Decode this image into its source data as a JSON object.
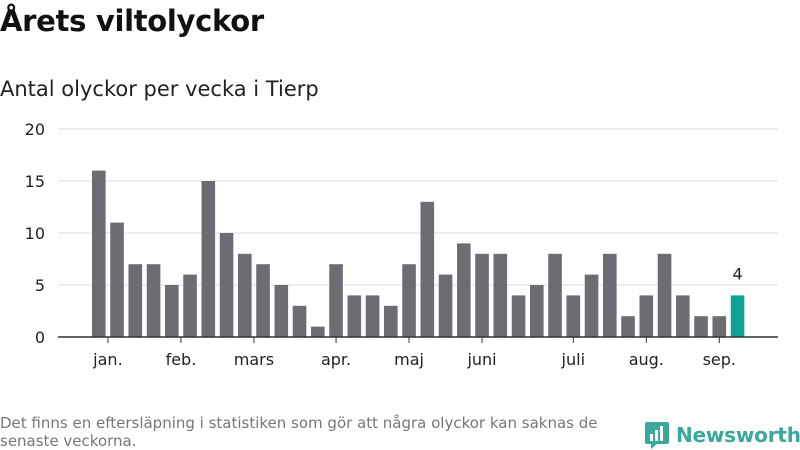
{
  "header": {
    "title": "Årets viltolyckor",
    "subtitle": "Antal olyckor per vecka i Tierp"
  },
  "footer": {
    "note": "Det finns en eftersläpning i statistiken som gör att några olyckor kan saknas de senaste veckorna.",
    "brand": "Newsworthy"
  },
  "colors": {
    "bar": "#6e6c72",
    "highlight": "#11a294",
    "grid": "#dddddd",
    "axis": "#333333",
    "brand": "#3aa89a"
  },
  "chart_data": {
    "type": "bar",
    "title": "Antal olyckor per vecka i Tierp",
    "xlabel": "",
    "ylabel": "",
    "ylim": [
      0,
      20
    ],
    "yticks": [
      0,
      5,
      10,
      15,
      20
    ],
    "grid": true,
    "values": [
      16,
      11,
      7,
      7,
      5,
      6,
      15,
      10,
      8,
      7,
      5,
      3,
      1,
      7,
      4,
      4,
      3,
      7,
      13,
      6,
      9,
      8,
      8,
      4,
      5,
      8,
      4,
      6,
      8,
      2,
      4,
      8,
      4,
      2,
      2,
      4
    ],
    "month_labels": [
      {
        "label": "jan.",
        "at_bar": 0.5
      },
      {
        "label": "feb.",
        "at_bar": 4.5
      },
      {
        "label": "mars",
        "at_bar": 8.5
      },
      {
        "label": "apr.",
        "at_bar": 13
      },
      {
        "label": "maj",
        "at_bar": 17
      },
      {
        "label": "juni",
        "at_bar": 21
      },
      {
        "label": "juli",
        "at_bar": 26
      },
      {
        "label": "aug.",
        "at_bar": 30
      },
      {
        "label": "sep.",
        "at_bar": 34
      }
    ],
    "highlight_index": 35,
    "highlight_label": "4"
  }
}
